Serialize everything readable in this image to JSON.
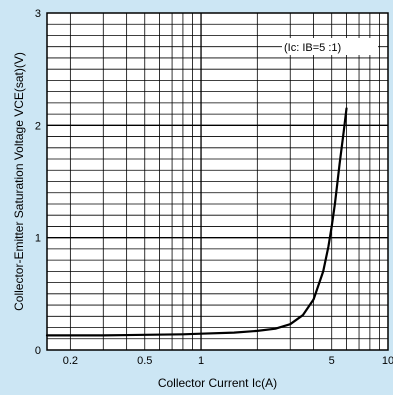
{
  "chart_data": {
    "type": "line",
    "xscale": "log",
    "xlim": [
      0.15,
      10
    ],
    "ylim": [
      0,
      3
    ],
    "xticks": [
      {
        "value": 0.2,
        "label": "0.2"
      },
      {
        "value": 0.5,
        "label": "0.5"
      },
      {
        "value": 1,
        "label": "1"
      },
      {
        "value": 5,
        "label": "5"
      },
      {
        "value": 10,
        "label": "10"
      }
    ],
    "yticks": [
      {
        "value": 0,
        "label": "0"
      },
      {
        "value": 1,
        "label": "1"
      },
      {
        "value": 2,
        "label": "2"
      },
      {
        "value": 3,
        "label": "3"
      }
    ],
    "xlabel": "Collector Current Ic(A)",
    "ylabel": "Collector-Emitter Saturation Voltage VCE(sat)(V)",
    "annotation": "(Ic: IB=5 :1)",
    "grid": true,
    "colors": {
      "background": "#cce6f4",
      "plot": "#ffffff",
      "line": "#000000"
    },
    "series": [
      {
        "x": [
          0.15,
          0.2,
          0.3,
          0.5,
          0.8,
          1.0,
          1.5,
          2.0,
          2.5,
          3.0,
          3.5,
          4.0,
          4.5,
          4.8,
          5.0,
          5.2,
          5.5,
          5.8,
          6.0
        ],
        "y": [
          0.13,
          0.13,
          0.13,
          0.135,
          0.14,
          0.145,
          0.155,
          0.17,
          0.19,
          0.23,
          0.31,
          0.45,
          0.7,
          0.92,
          1.1,
          1.3,
          1.65,
          1.95,
          2.15
        ]
      }
    ]
  }
}
